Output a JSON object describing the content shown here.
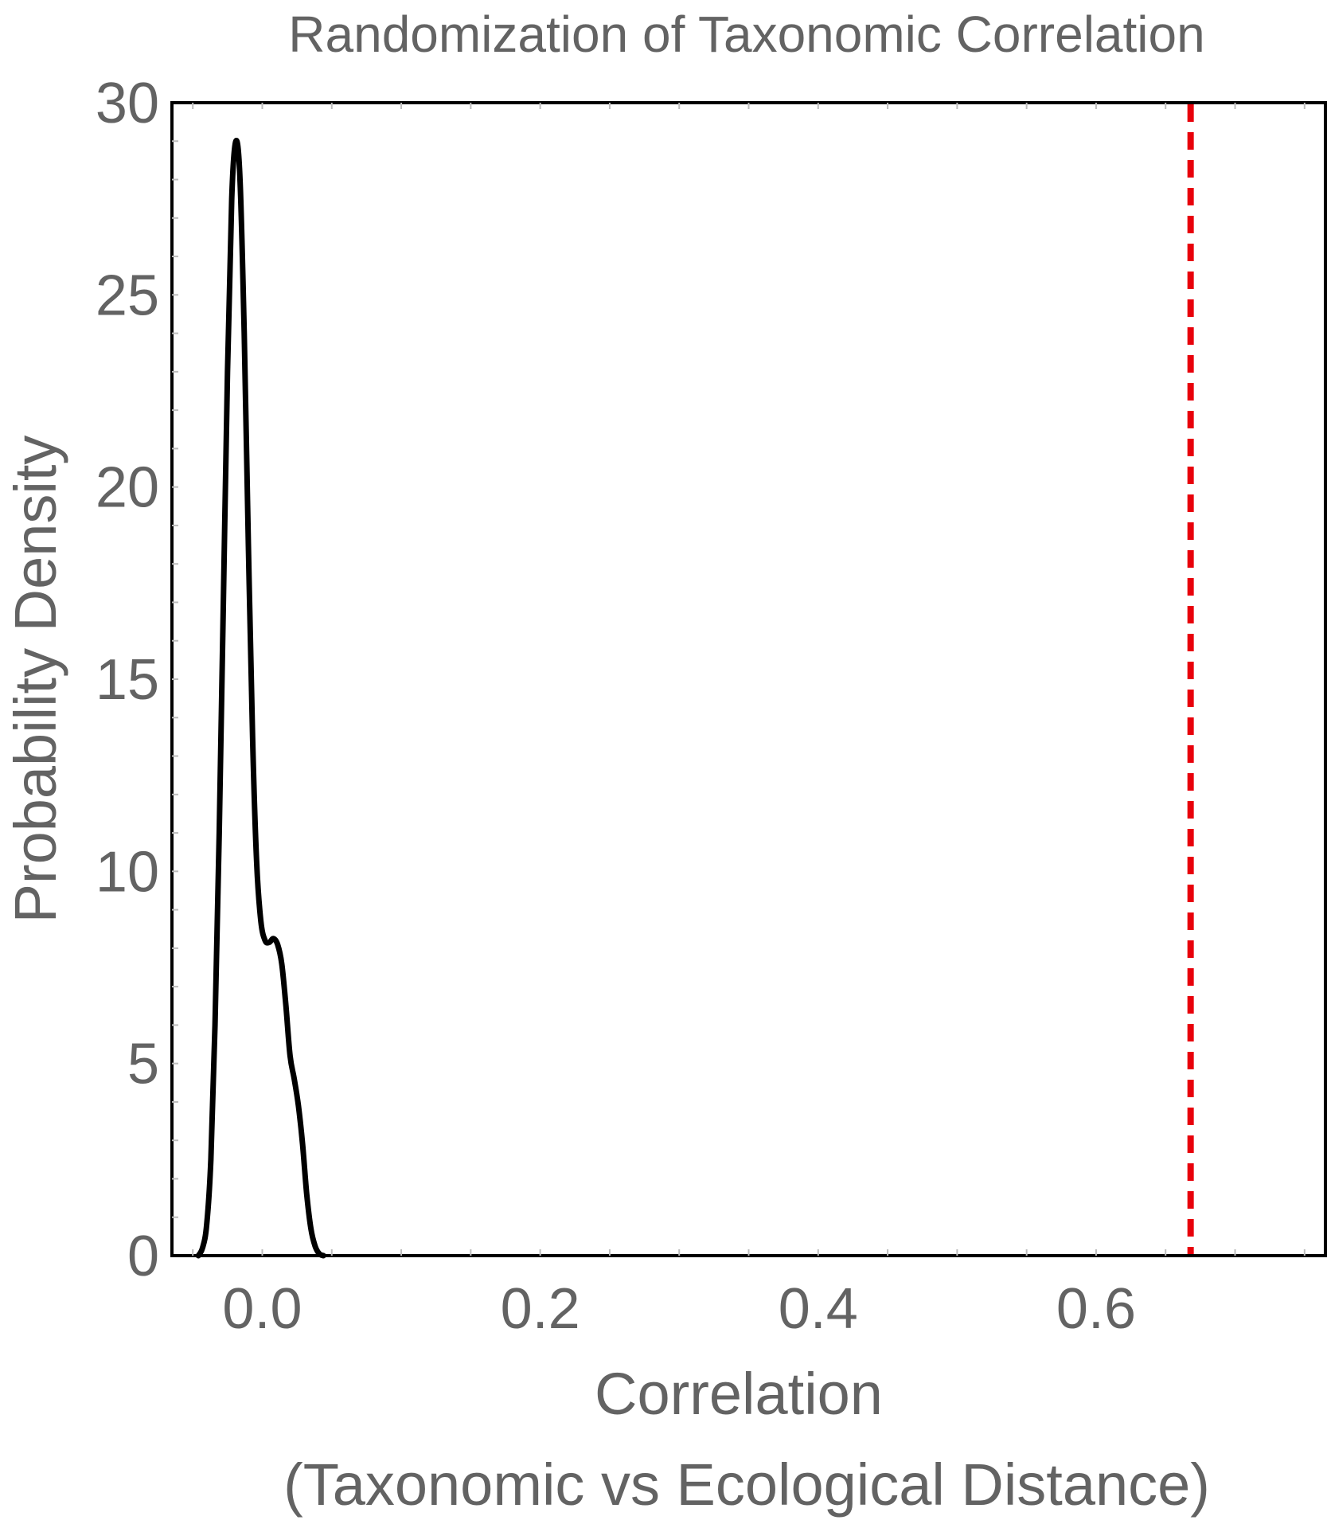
{
  "chart_data": {
    "type": "line",
    "title": "Randomization of Taxonomic Correlation",
    "xlabel_line1": "Correlation",
    "xlabel_line2": "(Taxonomic vs Ecological Distance)",
    "ylabel": "Probability Density",
    "xlim": [
      -0.065,
      0.765
    ],
    "ylim": [
      0,
      30
    ],
    "x_ticks": [
      0.0,
      0.2,
      0.4,
      0.6
    ],
    "x_tick_labels": [
      "0.0",
      "0.2",
      "0.4",
      "0.6"
    ],
    "y_ticks": [
      0,
      5,
      10,
      15,
      20,
      25,
      30
    ],
    "y_tick_labels": [
      "0",
      "5",
      "10",
      "15",
      "20",
      "25",
      "30"
    ],
    "grid": false,
    "series": [
      {
        "color": "#000000",
        "style": "solid",
        "points": [
          [
            -0.046,
            0.0
          ],
          [
            -0.043,
            0.2
          ],
          [
            -0.04,
            0.8
          ],
          [
            -0.037,
            2.5
          ],
          [
            -0.034,
            6.0
          ],
          [
            -0.031,
            11.0
          ],
          [
            -0.028,
            17.0
          ],
          [
            -0.025,
            23.0
          ],
          [
            -0.022,
            27.5
          ],
          [
            -0.019,
            29.0
          ],
          [
            -0.016,
            28.0
          ],
          [
            -0.013,
            24.0
          ],
          [
            -0.01,
            18.5
          ],
          [
            -0.007,
            13.5
          ],
          [
            -0.004,
            10.2
          ],
          [
            -0.001,
            8.7
          ],
          [
            0.002,
            8.2
          ],
          [
            0.005,
            8.15
          ],
          [
            0.008,
            8.25
          ],
          [
            0.011,
            8.1
          ],
          [
            0.014,
            7.6
          ],
          [
            0.017,
            6.5
          ],
          [
            0.02,
            5.2
          ],
          [
            0.023,
            4.6
          ],
          [
            0.026,
            3.9
          ],
          [
            0.029,
            2.9
          ],
          [
            0.032,
            1.6
          ],
          [
            0.035,
            0.7
          ],
          [
            0.038,
            0.25
          ],
          [
            0.041,
            0.05
          ],
          [
            0.044,
            0.0
          ]
        ]
      }
    ],
    "reference_line": {
      "x": 0.668,
      "color": "#e8000b",
      "style": "dashed"
    }
  }
}
